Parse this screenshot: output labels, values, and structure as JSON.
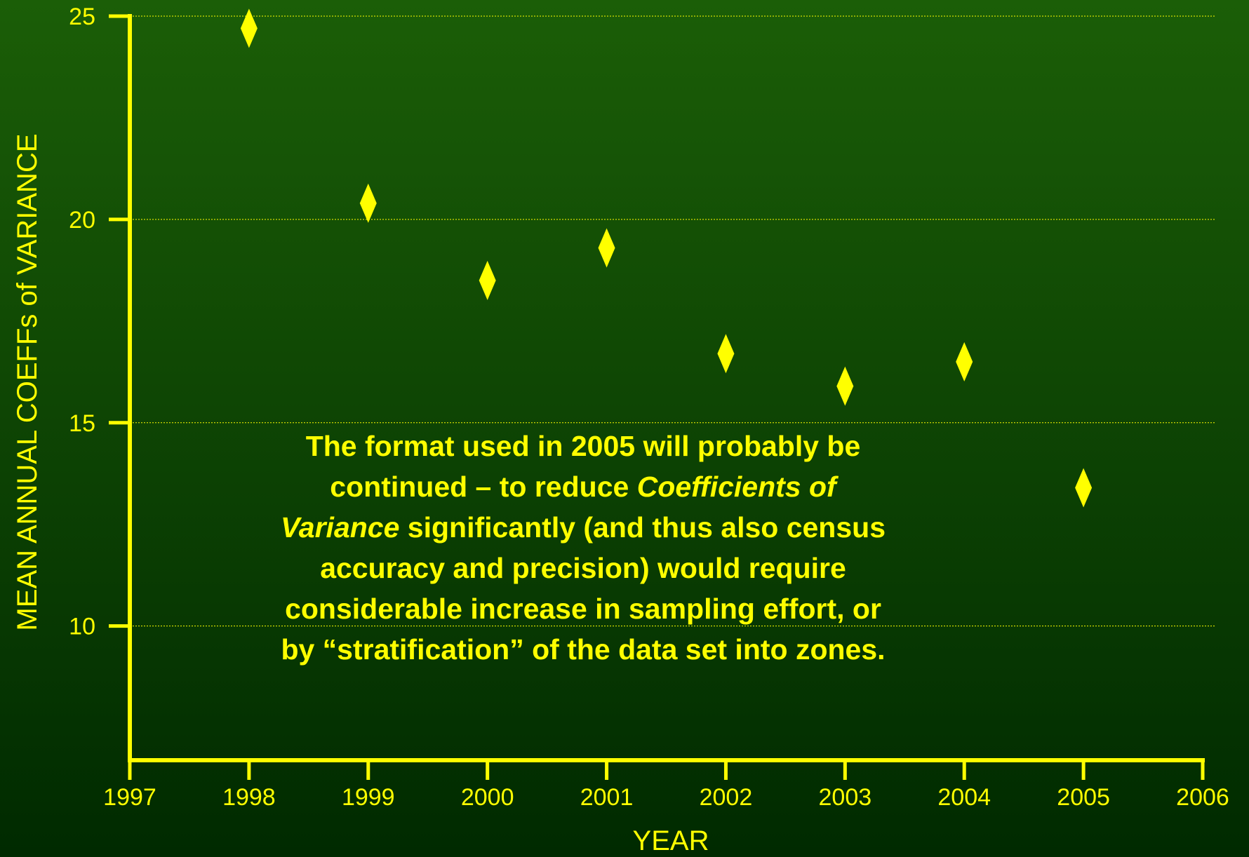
{
  "chart_data": {
    "type": "scatter",
    "x_label": "YEAR",
    "y_label": "MEAN ANNUAL COEFFs of VARIANCE",
    "x": [
      1998,
      1999,
      2000,
      2001,
      2002,
      2003,
      2004,
      2005
    ],
    "series": [
      {
        "color": "#ffff00",
        "values": [
          24.7,
          20.4,
          18.5,
          19.3,
          16.7,
          15.9,
          16.5,
          13.4
        ]
      }
    ],
    "xlim": [
      1997,
      2006
    ],
    "xticks": [
      1997,
      1998,
      1999,
      2000,
      2001,
      2002,
      2003,
      2004,
      2005,
      2006
    ],
    "ylim": [
      6.7,
      25
    ],
    "yticks": [
      10,
      15,
      20,
      25
    ],
    "grid": true,
    "annotation": [
      [
        {
          "text": "The format used in 2005 will probably be"
        }
      ],
      [
        {
          "text": "continued – to reduce "
        },
        {
          "text": "Coefficients of",
          "italic": true
        }
      ],
      [
        {
          "text": "Variance",
          "italic": true
        },
        {
          "text": " significantly (and thus also census"
        }
      ],
      [
        {
          "text": "accuracy and precision) would require"
        }
      ],
      [
        {
          "text": "considerable increase in sampling effort, or"
        }
      ],
      [
        {
          "text": "by “stratification” of the data set into zones."
        }
      ]
    ]
  }
}
